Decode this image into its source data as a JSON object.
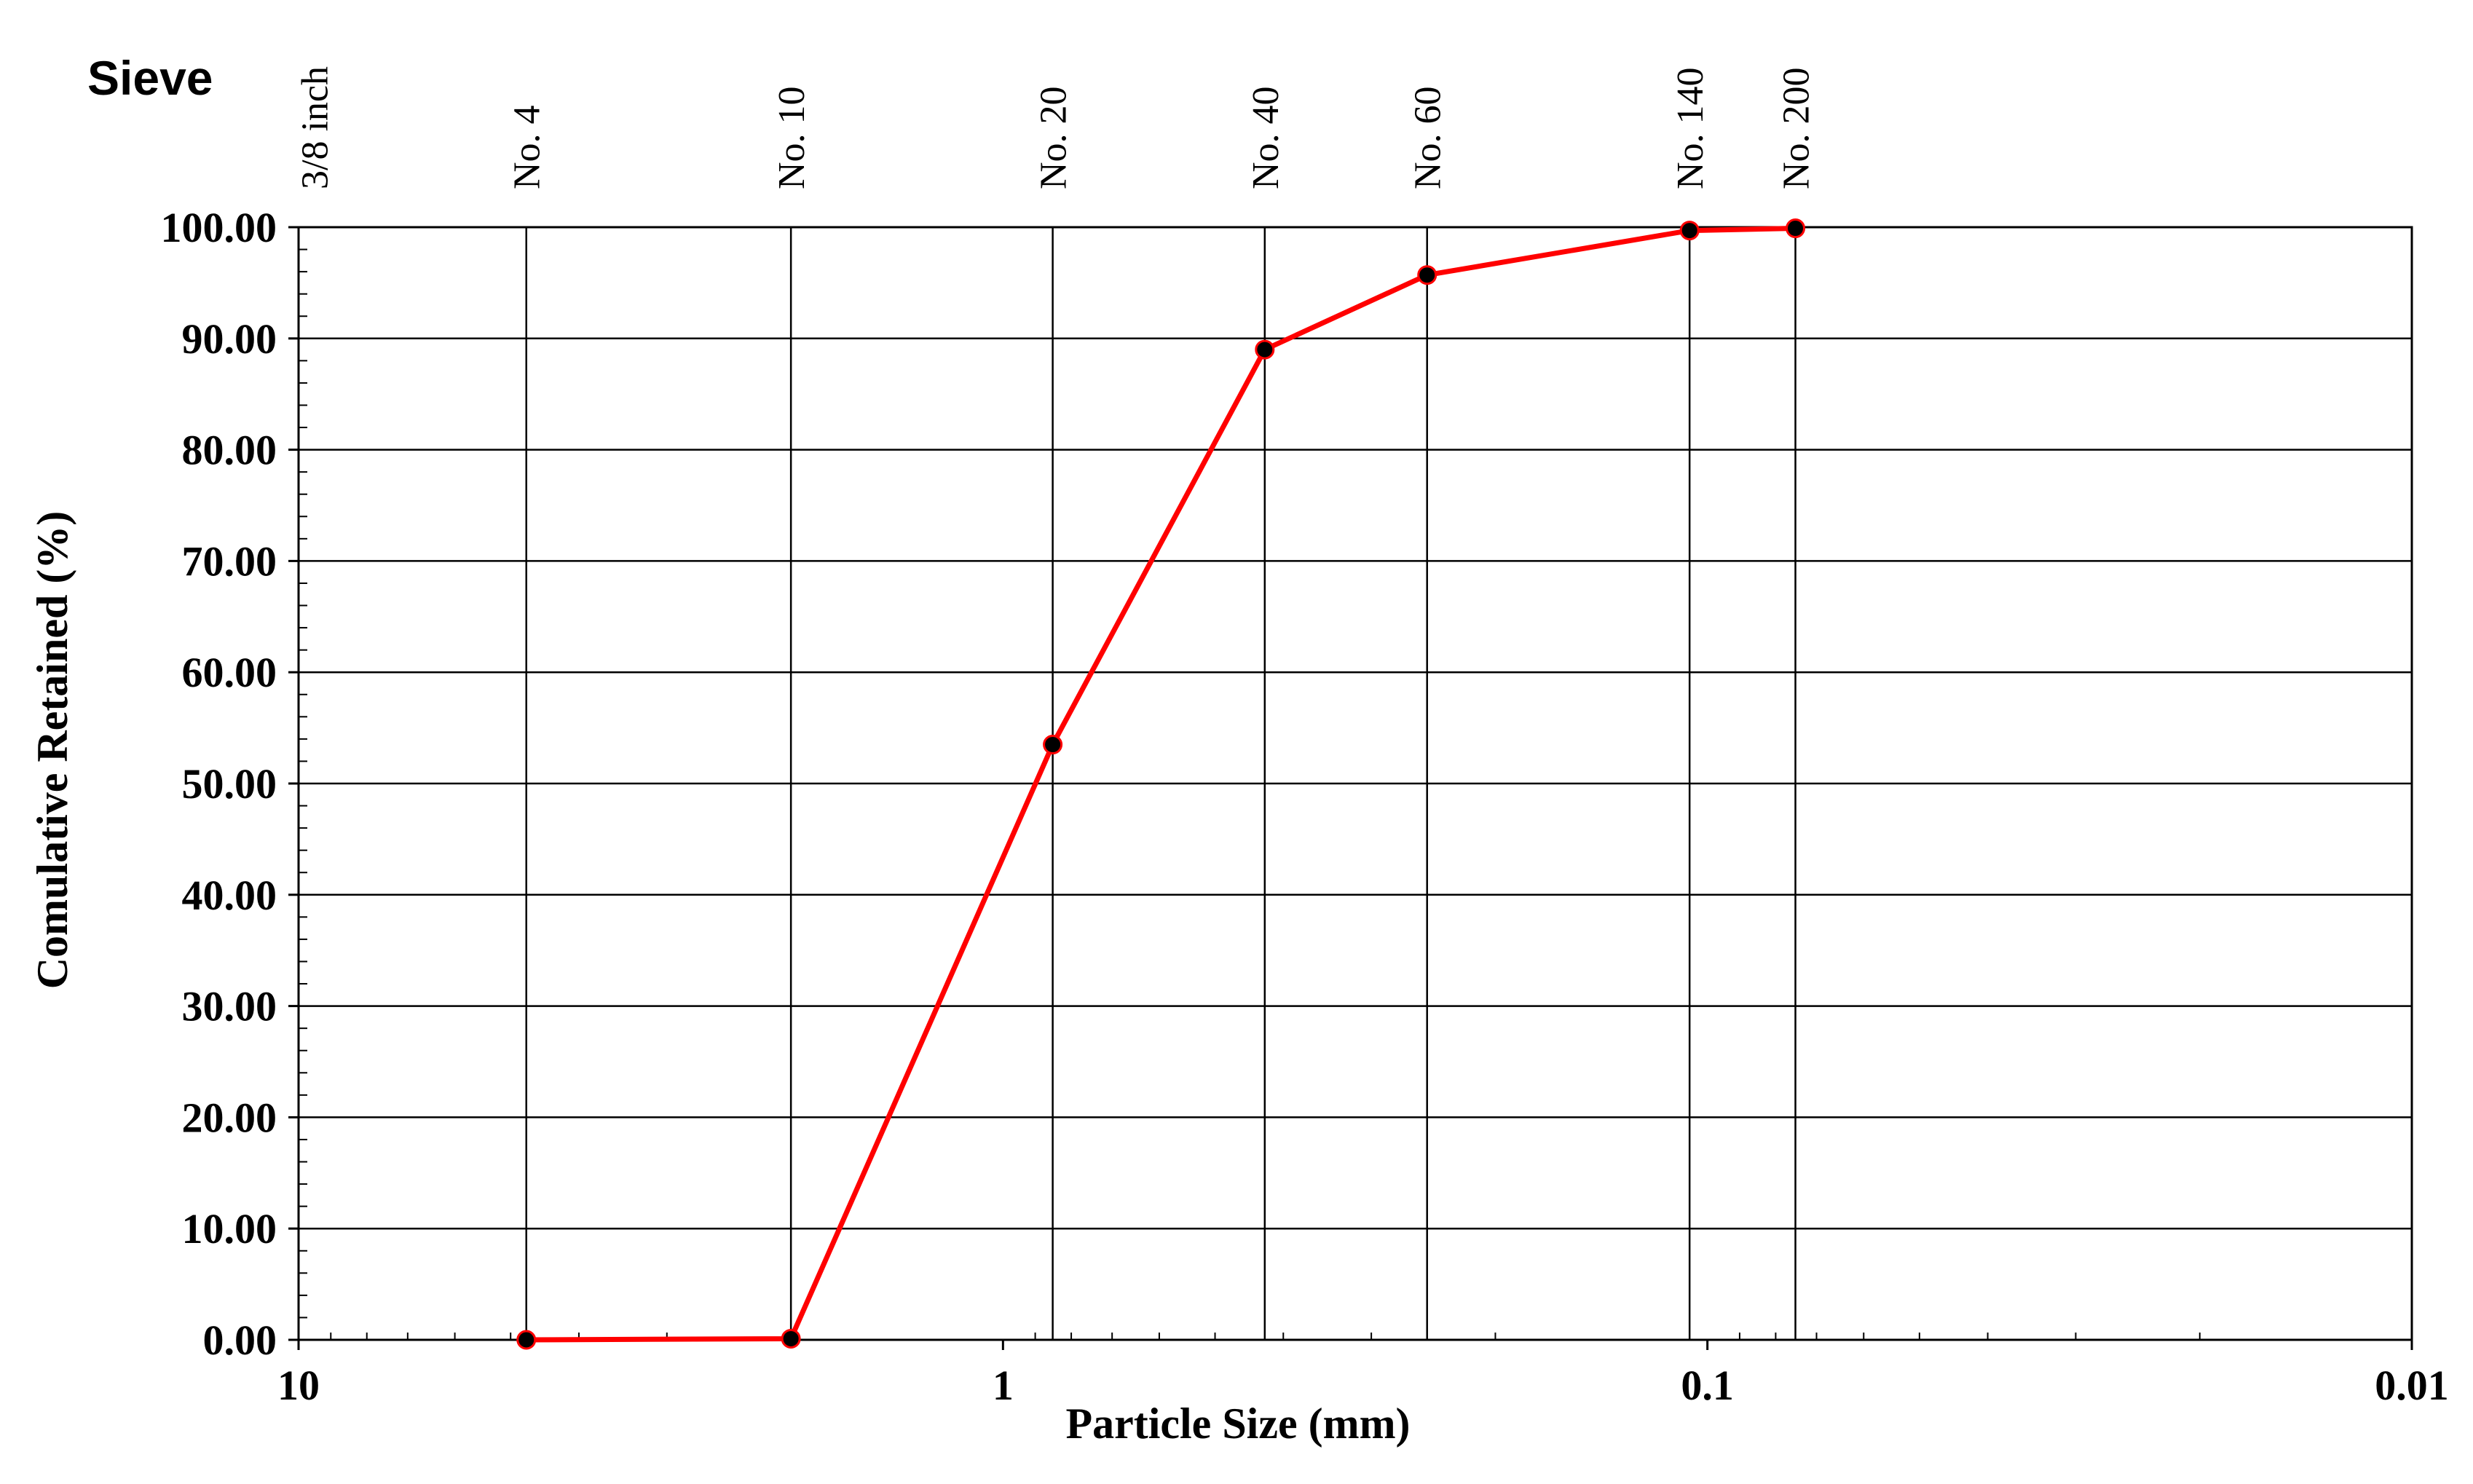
{
  "chart_data": {
    "type": "line",
    "title": "",
    "xlabel": "Particle Size (mm)",
    "ylabel": "Comulative Retained (%)",
    "x_scale": "log",
    "x_reversed": true,
    "xlim": [
      10,
      0.01
    ],
    "ylim": [
      0,
      100
    ],
    "x_ticks": [
      {
        "value": 10,
        "label": "10"
      },
      {
        "value": 1,
        "label": "1"
      },
      {
        "value": 0.1,
        "label": "0.1"
      },
      {
        "value": 0.01,
        "label": "0.01"
      }
    ],
    "y_ticks": [
      {
        "value": 0,
        "label": "0.00"
      },
      {
        "value": 10,
        "label": "10.00"
      },
      {
        "value": 20,
        "label": "20.00"
      },
      {
        "value": 30,
        "label": "30.00"
      },
      {
        "value": 40,
        "label": "40.00"
      },
      {
        "value": 50,
        "label": "50.00"
      },
      {
        "value": 60,
        "label": "60.00"
      },
      {
        "value": 70,
        "label": "70.00"
      },
      {
        "value": 80,
        "label": "80.00"
      },
      {
        "value": 90,
        "label": "90.00"
      },
      {
        "value": 100,
        "label": "100.00"
      }
    ],
    "sieve_heading": "Sieve",
    "sieves": [
      {
        "label": "3/8 inch",
        "size": 9.5
      },
      {
        "label": "No. 4",
        "size": 4.75
      },
      {
        "label": "No. 10",
        "size": 2.0
      },
      {
        "label": "No. 20",
        "size": 0.85
      },
      {
        "label": "No. 40",
        "size": 0.425
      },
      {
        "label": "No. 60",
        "size": 0.25
      },
      {
        "label": "No. 140",
        "size": 0.106
      },
      {
        "label": "No. 200",
        "size": 0.075
      }
    ],
    "series": [
      {
        "x": [
          4.75,
          2.0,
          0.85,
          0.425,
          0.25,
          0.106,
          0.075
        ],
        "y": [
          0.0,
          0.1,
          53.5,
          89.0,
          95.7,
          99.7,
          99.9
        ]
      }
    ],
    "grid": true,
    "colors": {
      "line": "#ff0000",
      "marker": "#000000",
      "grid": "#000000"
    }
  }
}
